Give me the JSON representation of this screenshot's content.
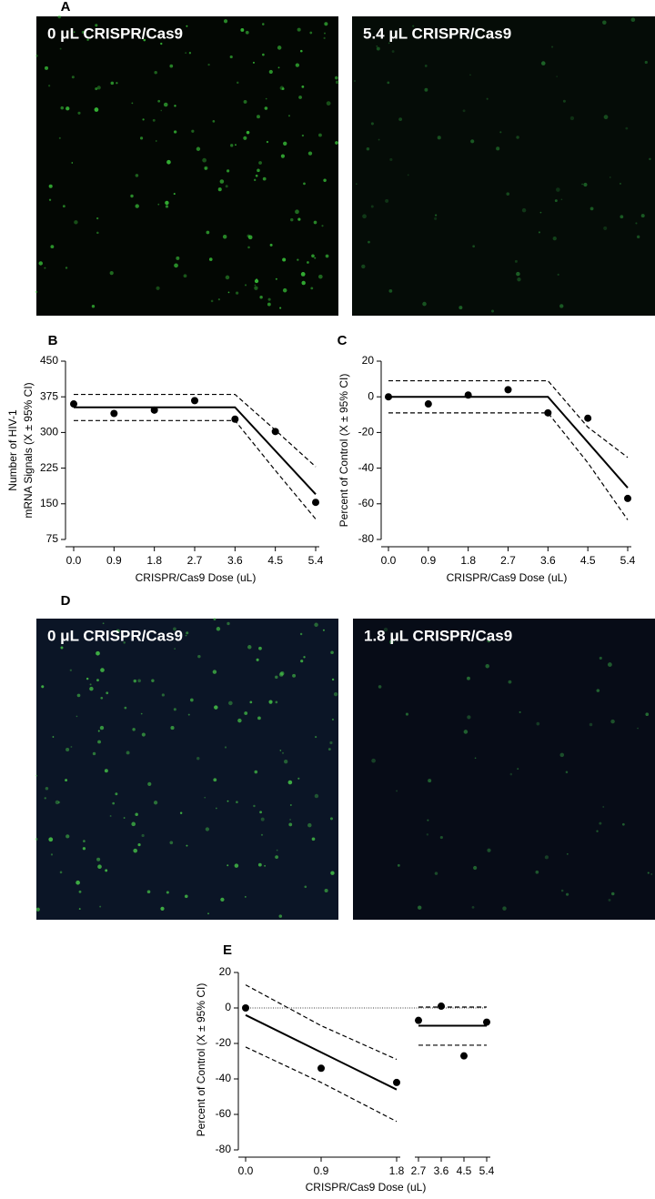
{
  "panel_labels": [
    "A",
    "B",
    "C",
    "D",
    "E"
  ],
  "images": [
    {
      "label": "0 μL CRISPR/Cas9"
    },
    {
      "label": "5.4 μL CRISPR/Cas9"
    },
    {
      "label": "0 μL CRISPR/Cas9"
    },
    {
      "label": "1.8 μL CRISPR/Cas9"
    }
  ],
  "chart_data": [
    {
      "type": "scatter",
      "xlabel": "CRISPR/Cas9 Dose  (uL)",
      "ylabel": [
        "Number of HIV-1",
        "mRNA Signals (X ± 95% CI)"
      ],
      "x": [
        0,
        0.9,
        1.8,
        2.7,
        3.6,
        4.5,
        5.4
      ],
      "values": [
        360,
        340,
        347,
        367,
        328,
        302,
        153
      ],
      "xlim": [
        0,
        5.4
      ],
      "xticks": [
        {
          "value": 0,
          "label": "0.0"
        },
        0.9,
        1.8,
        2.7,
        3.6,
        4.5,
        5.4
      ],
      "ylim": [
        75,
        450
      ],
      "yticks": [
        75,
        150,
        225,
        300,
        375,
        450
      ],
      "fit_lines": [
        {
          "style": "solid",
          "x": [
            0,
            3.6,
            5.4
          ],
          "values": [
            353,
            353,
            170
          ]
        },
        {
          "style": "dashed",
          "x": [
            0,
            3.6,
            4.5,
            5.4
          ],
          "values": [
            380,
            380,
            305,
            228
          ]
        },
        {
          "style": "dashed",
          "x": [
            0,
            3.6,
            4.5,
            5.4
          ],
          "values": [
            325,
            325,
            220,
            118
          ]
        }
      ]
    },
    {
      "type": "scatter",
      "xlabel": "CRISPR/Cas9 Dose  (uL)",
      "ylabel": [
        "Percent of Control (X ± 95% CI)"
      ],
      "x": [
        0,
        0.9,
        1.8,
        2.7,
        3.6,
        4.5,
        5.4
      ],
      "values": [
        0,
        -4,
        1,
        4,
        -9,
        -12,
        -57
      ],
      "xlim": [
        0,
        5.4
      ],
      "xticks": [
        {
          "value": 0,
          "label": "0.0"
        },
        0.9,
        1.8,
        2.7,
        3.6,
        4.5,
        5.4
      ],
      "ylim": [
        -80,
        20
      ],
      "yticks": [
        -80,
        -60,
        -40,
        -20,
        0,
        20
      ],
      "fit_lines": [
        {
          "style": "solid",
          "x": [
            0,
            3.6,
            5.4
          ],
          "values": [
            0,
            0,
            -51
          ]
        },
        {
          "style": "dashed",
          "x": [
            0,
            3.6,
            4.5,
            5.4
          ],
          "values": [
            9,
            9,
            -17,
            -34
          ]
        },
        {
          "style": "dashed",
          "x": [
            0,
            3.6,
            4.5,
            5.4
          ],
          "values": [
            -9,
            -9,
            -37,
            -69
          ]
        }
      ]
    },
    {
      "type": "scatter",
      "xlabel": "CRISPR/Cas9 Dose  (uL)",
      "ylabel": [
        "Percent of Control (X ± 95% CI)"
      ],
      "x": [
        0,
        0.9,
        1.8,
        2.7,
        3.6,
        4.5,
        5.4
      ],
      "values": [
        0,
        -34,
        -42,
        -7,
        1,
        -27,
        -8
      ],
      "xlim": [
        [
          0,
          1.8
        ],
        [
          2.7,
          5.4
        ]
      ],
      "xticks": [
        {
          "value": 0,
          "label": "0.0"
        },
        0.9,
        1.8,
        2.7,
        3.6,
        4.5,
        5.4
      ],
      "ylim": [
        -80,
        20
      ],
      "yticks": [
        -80,
        -60,
        -40,
        -20,
        0,
        20
      ],
      "reference_line": 0,
      "fit_lines": [
        {
          "style": "solid",
          "x": [
            0,
            1.8
          ],
          "values": [
            -4,
            -46
          ]
        },
        {
          "style": "dashed",
          "x": [
            0,
            0.9,
            1.8
          ],
          "values": [
            13,
            -10,
            -29
          ]
        },
        {
          "style": "dashed",
          "x": [
            0,
            0.9,
            1.8
          ],
          "values": [
            -22,
            -42,
            -64
          ]
        },
        {
          "style": "solid",
          "x": [
            2.7,
            5.4
          ],
          "values": [
            -10,
            -10
          ]
        },
        {
          "style": "dashed",
          "x": [
            2.7,
            5.4
          ],
          "values": [
            0.5,
            0.5
          ]
        },
        {
          "style": "dashed",
          "x": [
            2.7,
            5.4
          ],
          "values": [
            -21,
            -21
          ]
        }
      ]
    }
  ]
}
